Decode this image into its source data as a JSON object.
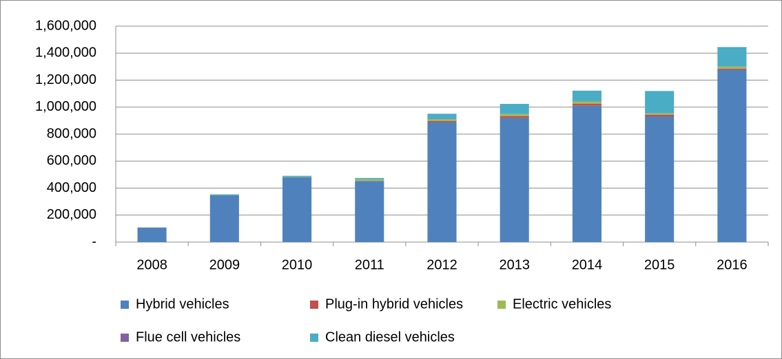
{
  "chart_data": {
    "type": "stacked_bar",
    "categories": [
      "2008",
      "2009",
      "2010",
      "2011",
      "2012",
      "2013",
      "2014",
      "2015",
      "2016"
    ],
    "series": [
      {
        "name": "Hybrid vehicles",
        "color": "#4f81bd",
        "values": [
          108000,
          347000,
          479000,
          452000,
          887000,
          919000,
          1010000,
          930000,
          1276000
        ]
      },
      {
        "name": "Plug-in hybrid vehicles",
        "color": "#c0504d",
        "values": [
          0,
          0,
          0,
          1000,
          10000,
          15000,
          16000,
          14000,
          9000
        ]
      },
      {
        "name": "Electric vehicles",
        "color": "#9bbb59",
        "values": [
          0,
          2000,
          3000,
          13000,
          13000,
          15000,
          16000,
          10000,
          15000
        ]
      },
      {
        "name": "Flue cell vehicles",
        "color": "#8064a2",
        "values": [
          0,
          0,
          0,
          0,
          0,
          0,
          0,
          400,
          1000
        ]
      },
      {
        "name": "Clean diesel vehicles",
        "color": "#4bacc6",
        "values": [
          0,
          5000,
          9000,
          9000,
          41000,
          75000,
          80000,
          165000,
          144000
        ]
      }
    ],
    "ylim": [
      0,
      1600000
    ],
    "yticks": [
      {
        "value": 0,
        "label": "-"
      },
      {
        "value": 200000,
        "label": "200,000"
      },
      {
        "value": 400000,
        "label": "400,000"
      },
      {
        "value": 600000,
        "label": "600,000"
      },
      {
        "value": 800000,
        "label": "800,000"
      },
      {
        "value": 1000000,
        "label": "1,000,000"
      },
      {
        "value": 1200000,
        "label": "1,200,000"
      },
      {
        "value": 1400000,
        "label": "1,400,000"
      },
      {
        "value": 1600000,
        "label": "1,600,000"
      }
    ],
    "grid": true
  }
}
